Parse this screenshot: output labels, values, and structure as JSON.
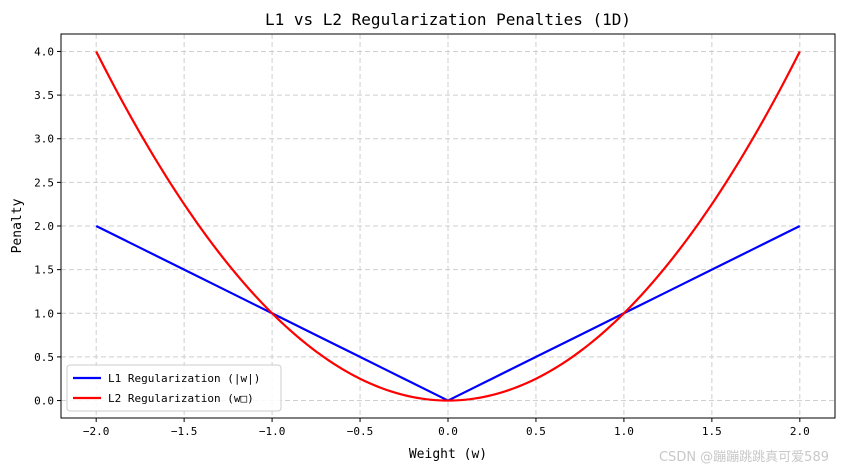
{
  "chart_data": {
    "type": "line",
    "title": "L1 vs L2 Regularization Penalties (1D)",
    "xlabel": "Weight (w)",
    "ylabel": "Penalty",
    "xlim": [
      -2.2,
      2.2
    ],
    "ylim": [
      -0.2,
      4.2
    ],
    "xticks": [
      -2.0,
      -1.5,
      -1.0,
      -0.5,
      0.0,
      0.5,
      1.0,
      1.5,
      2.0
    ],
    "yticks": [
      0.0,
      0.5,
      1.0,
      1.5,
      2.0,
      2.5,
      3.0,
      3.5,
      4.0
    ],
    "xtick_labels": [
      "−2.0",
      "−1.5",
      "−1.0",
      "−0.5",
      "0.0",
      "0.5",
      "1.0",
      "1.5",
      "2.0"
    ],
    "ytick_labels": [
      "0.0",
      "0.5",
      "1.0",
      "1.5",
      "2.0",
      "2.5",
      "3.0",
      "3.5",
      "4.0"
    ],
    "grid": true,
    "legend_position": "lower-left",
    "x": [
      -2.0,
      -1.75,
      -1.5,
      -1.25,
      -1.0,
      -0.75,
      -0.5,
      -0.25,
      0.0,
      0.25,
      0.5,
      0.75,
      1.0,
      1.25,
      1.5,
      1.75,
      2.0
    ],
    "series": [
      {
        "name": "L1 Regularization (|w|)",
        "color": "#0000ff",
        "values": [
          2.0,
          1.75,
          1.5,
          1.25,
          1.0,
          0.75,
          0.5,
          0.25,
          0.0,
          0.25,
          0.5,
          0.75,
          1.0,
          1.25,
          1.5,
          1.75,
          2.0
        ]
      },
      {
        "name": "L2 Regularization (w□)",
        "color": "#ff0000",
        "values": [
          4.0,
          3.0625,
          2.25,
          1.5625,
          1.0,
          0.5625,
          0.25,
          0.0625,
          0.0,
          0.0625,
          0.25,
          0.5625,
          1.0,
          1.5625,
          2.25,
          3.0625,
          4.0
        ]
      }
    ]
  },
  "watermark": "CSDN @蹦蹦跳跳真可爱589"
}
